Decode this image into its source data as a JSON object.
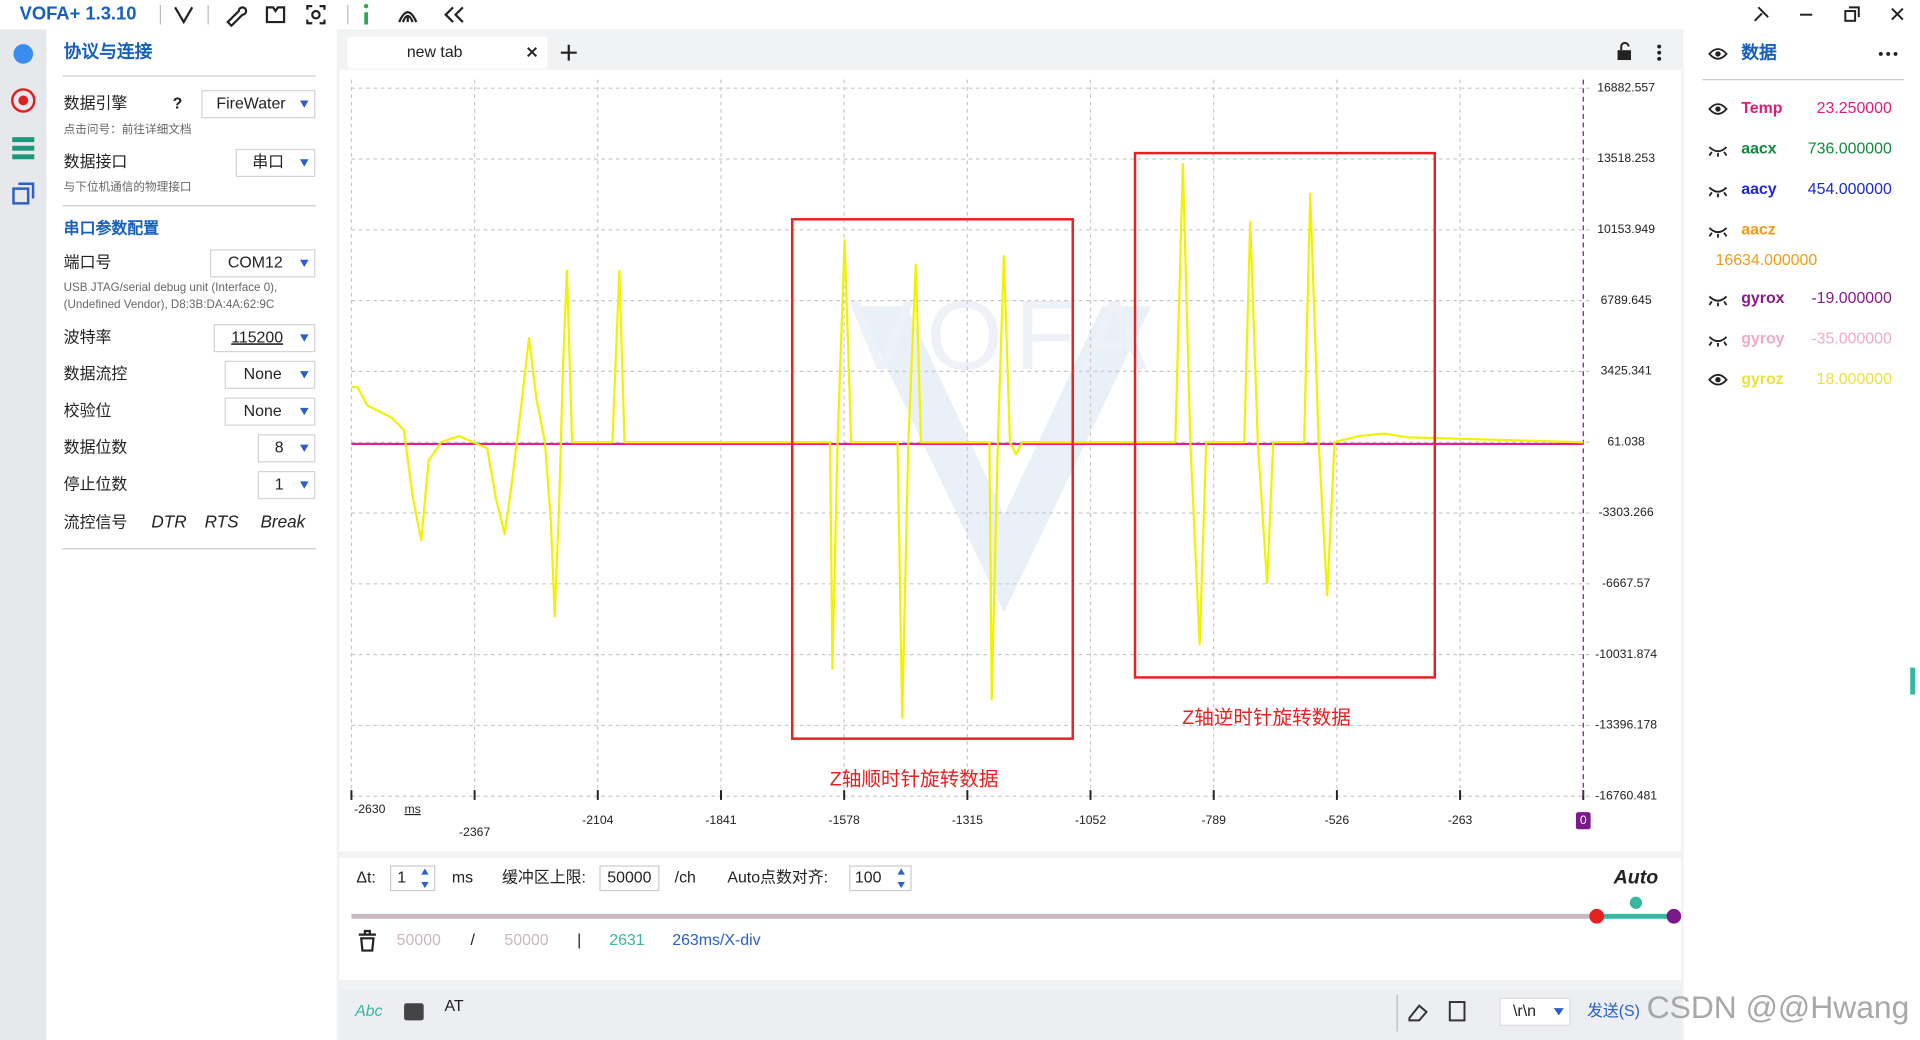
{
  "app": {
    "title": "VOFA+ 1.3.10"
  },
  "left_panel": {
    "title": "协议与连接",
    "engine": {
      "label": "数据引擎",
      "help": "?",
      "value": "FireWater",
      "hint": "点击问号：前往详细文档"
    },
    "interface": {
      "label": "数据接口",
      "value": "串口",
      "hint": "与下位机通信的物理接口"
    },
    "serial_title": "串口参数配置",
    "fields": [
      {
        "label": "端口号",
        "value": "COM12"
      },
      {
        "label": "波特率",
        "value": "115200"
      },
      {
        "label": "数据流控",
        "value": "None"
      },
      {
        "label": "校验位",
        "value": "None"
      },
      {
        "label": "数据位数",
        "value": "8"
      },
      {
        "label": "停止位数",
        "value": "1"
      }
    ],
    "port_desc": [
      "USB JTAG/serial debug unit (Interface 0),",
      "(Undefined Vendor), D8:3B:DA:4A:62:9C"
    ],
    "flow_signals": {
      "label": "流控信号",
      "items": [
        "DTR",
        "RTS",
        "Break"
      ]
    }
  },
  "tab": {
    "name": "new tab"
  },
  "chart_data": {
    "type": "line",
    "watermark": "VOFA",
    "x_label": "ms",
    "xlim": [
      -2630,
      0
    ],
    "ylim": [
      -16760.481,
      16882.557
    ],
    "xticks": [
      -2630,
      -2367,
      -2104,
      -1841,
      -1578,
      -1315,
      -1052,
      -789,
      -526,
      -263,
      0
    ],
    "yticks": [
      16882.557,
      13518.253,
      10153.949,
      6789.645,
      3425.341,
      61.038,
      -3303.266,
      -6667.57,
      -10031.874,
      -13396.178,
      -16760.481
    ],
    "grid": true,
    "x": [
      -2630,
      -2617,
      -2596,
      -2570,
      -2544,
      -2518,
      -2499,
      -2481,
      -2465,
      -2439,
      -2400,
      -2340,
      -2322,
      -2303,
      -2288,
      -2269,
      -2251,
      -2235,
      -2217,
      -2204,
      -2196,
      -2186,
      -2178,
      -2170,
      -2159,
      -2073,
      -2058,
      -2047,
      -1608,
      -1603,
      -1592,
      -1577,
      -1563,
      -1464,
      -1454,
      -1441,
      -1425,
      -1414,
      -1268,
      -1263,
      -1250,
      -1237,
      -1224,
      -1211,
      -1198,
      -871,
      -855,
      -839,
      -819,
      -805,
      -724,
      -711,
      -695,
      -675,
      -662,
      -596,
      -583,
      -565,
      -547,
      -531,
      -479,
      -426,
      -374,
      0
    ],
    "series": [
      {
        "color": "#e8189a",
        "values": [
          -19,
          -19,
          -19,
          -19,
          -19,
          -19,
          -19,
          -19,
          -19,
          -19,
          -19,
          -19,
          -19,
          -19,
          -19,
          -19,
          -19,
          -19,
          -19,
          -19,
          -19,
          -19,
          -19,
          -19,
          -19,
          -19,
          -19,
          -19,
          -19,
          -19,
          -19,
          -19,
          -19,
          -19,
          -19,
          -19,
          -19,
          -19,
          -19,
          -19,
          -19,
          -19,
          -19,
          -19,
          -19,
          -19,
          -19,
          -19,
          -19,
          -19,
          -19,
          -19,
          -19,
          -19,
          -19,
          -19,
          -19,
          -19,
          -19,
          -19,
          -19,
          -19,
          -19,
          -19
        ]
      },
      {
        "color": "#f2f200",
        "values": [
          2680,
          2680,
          1807,
          1516,
          1225,
          643,
          -2558,
          -4596,
          -812,
          61,
          352,
          -230,
          -2558,
          -4305,
          -1976,
          1516,
          5009,
          2098,
          61,
          -3722,
          -8204,
          -2558,
          3845,
          8210,
          61,
          61,
          8210,
          61,
          61,
          -10707,
          61,
          9666,
          61,
          61,
          -13035,
          61,
          8501,
          61,
          61,
          -12162,
          61,
          8909,
          61,
          -521,
          61,
          61,
          13274,
          61,
          -9543,
          61,
          61,
          10538,
          61,
          -6633,
          61,
          61,
          11877,
          61,
          -7215,
          61,
          352,
          468,
          294,
          61
        ]
      }
    ],
    "annotations": [
      {
        "text": "Z轴顺时针旋转数据",
        "x": [
          -1689,
          -1090
        ],
        "y": [
          10653,
          -14025
        ]
      },
      {
        "text": "Z轴逆时针旋转数据",
        "x": [
          -957,
          -317
        ],
        "y": [
          13798,
          -11115
        ]
      }
    ]
  },
  "controls": {
    "dt_label": "Δt:",
    "dt": 1,
    "dt_unit": "ms",
    "buffer_label": "缓冲区上限:",
    "buffer": 50000,
    "buffer_unit": "/ch",
    "auto_label": "Auto点数对齐:",
    "auto_align": 100,
    "mode": "Auto"
  },
  "status": {
    "count": 50000,
    "separator": "/",
    "capacity": 50000,
    "divider": "|",
    "points": 2631,
    "scale": "263ms/X-div"
  },
  "send_bar": {
    "format": "Abc",
    "input": "AT",
    "line_ending": "\\r\\n",
    "send": "发送(S)"
  },
  "data_panel": {
    "title": "数据",
    "channels": [
      {
        "name": "Temp",
        "color": "#e6197a",
        "value": 23.25,
        "value_label": "23.250000",
        "visible": true
      },
      {
        "name": "aacx",
        "color": "#0f8a3c",
        "value": 736,
        "value_label": "736.000000",
        "visible": false
      },
      {
        "name": "aacy",
        "color": "#1d28d0",
        "value": 454,
        "value_label": "454.000000",
        "visible": false
      },
      {
        "name": "aacz",
        "color": "#f39c12",
        "value": 16634,
        "value_label": "16634.000000",
        "visible": false
      },
      {
        "name": "gyrox",
        "color": "#8a1a8a",
        "value": -19,
        "value_label": "-19.000000",
        "visible": false
      },
      {
        "name": "gyroy",
        "color": "#f2a9c9",
        "value": -35,
        "value_label": "-35.000000",
        "visible": false
      },
      {
        "name": "gyroz",
        "color": "#ebe23a",
        "value": 18,
        "value_label": "18.000000",
        "visible": true
      }
    ]
  },
  "watermark": "CSDN @@Hwang"
}
